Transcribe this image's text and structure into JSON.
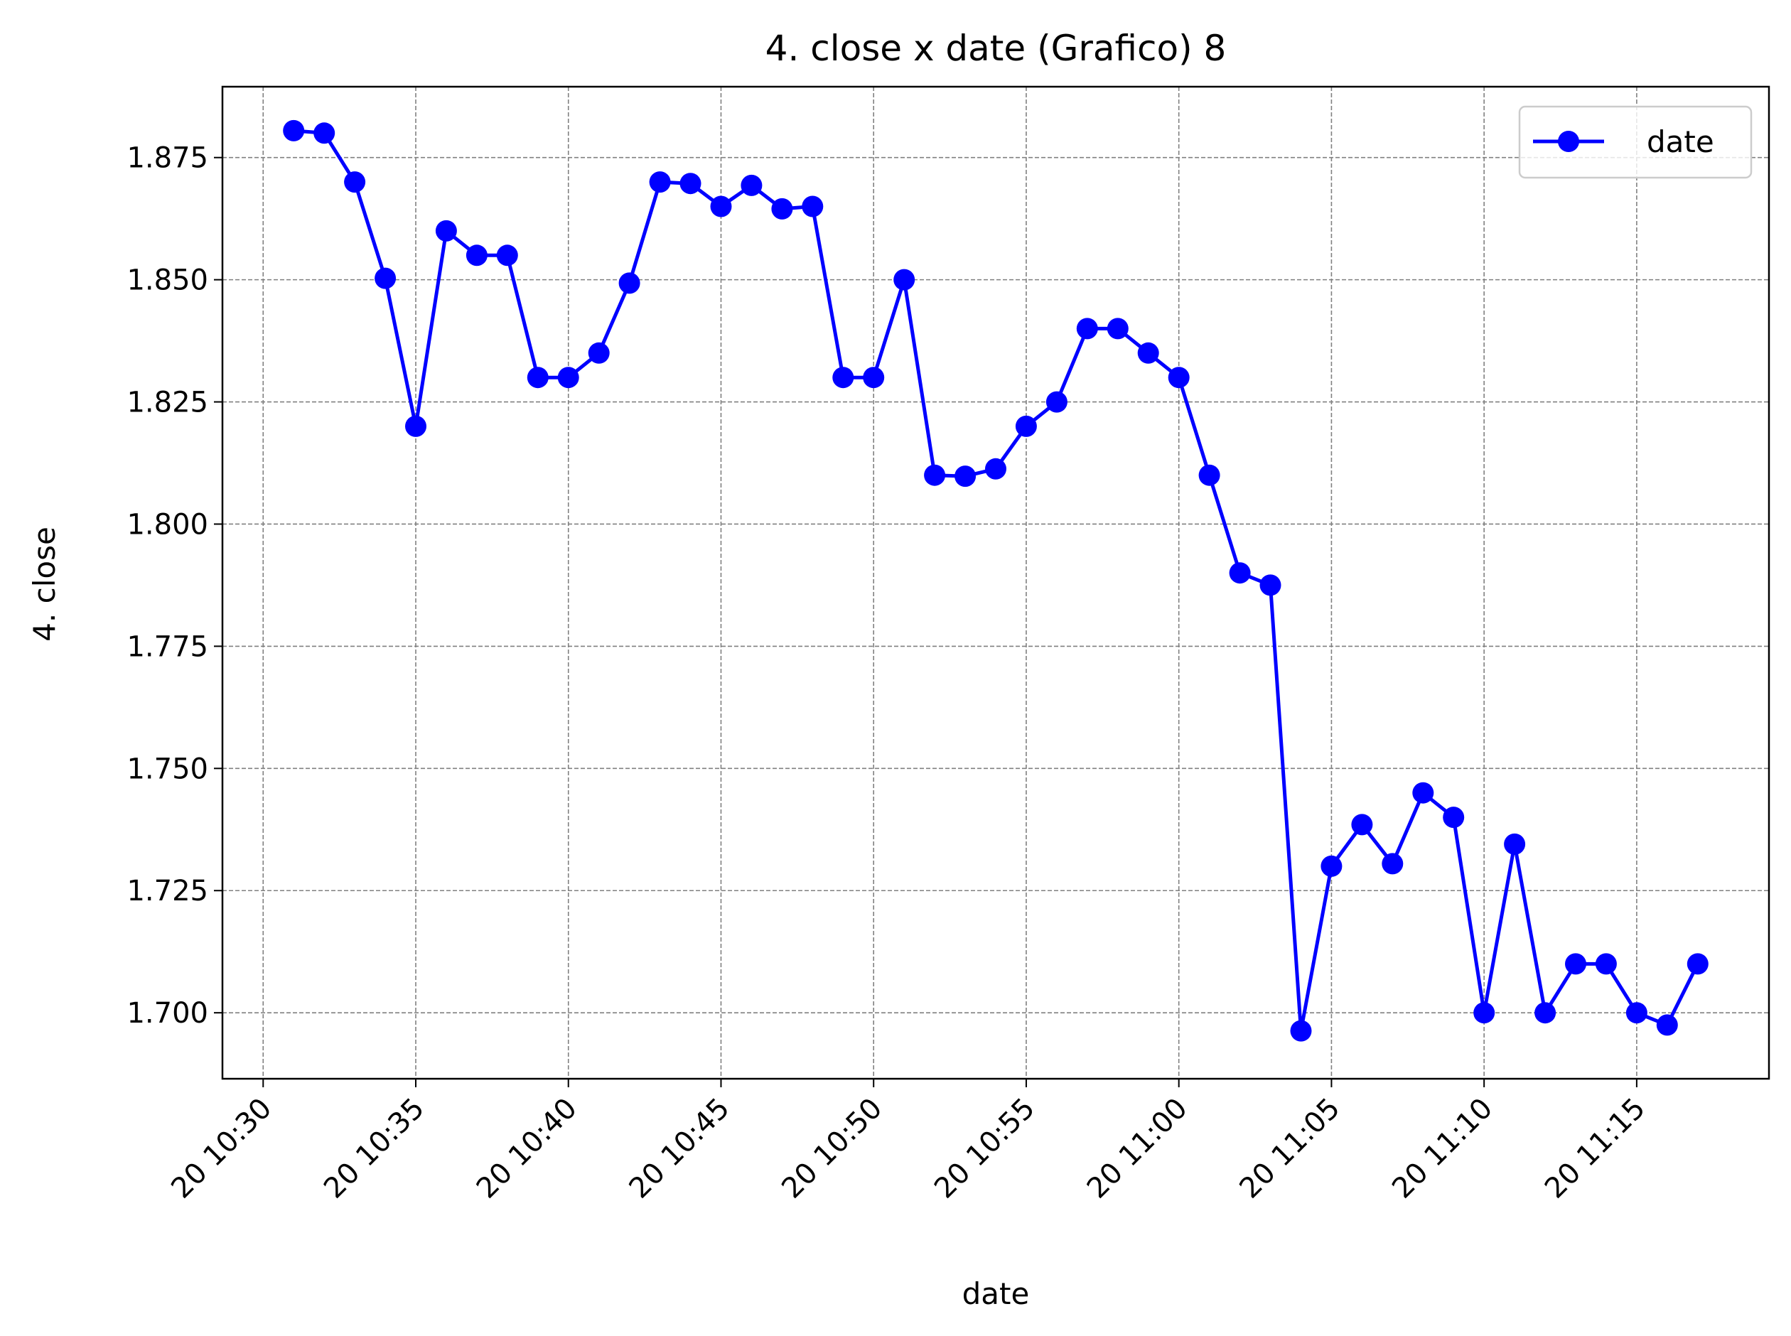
{
  "chart_data": {
    "type": "line",
    "title": "4. close x date (Grafico) 8",
    "xlabel": "date",
    "ylabel": "4. close",
    "grid": true,
    "legend_position": "top-right",
    "series_color": "#0000ff",
    "x_tick_labels": [
      "20 10:30",
      "20 10:35",
      "20 10:40",
      "20 10:45",
      "20 10:50",
      "20 10:55",
      "20 11:00",
      "20 11:05",
      "20 11:10",
      "20 11:15"
    ],
    "y_tick_labels": [
      "1.700",
      "1.725",
      "1.750",
      "1.775",
      "1.800",
      "1.825",
      "1.850",
      "1.875"
    ],
    "xlim": [
      "20 10:28:40",
      "20 11:19:20"
    ],
    "ylim": [
      1.6865,
      1.8895
    ],
    "x": [
      "20 10:31",
      "20 10:32",
      "20 10:33",
      "20 10:34",
      "20 10:35",
      "20 10:36",
      "20 10:37",
      "20 10:38",
      "20 10:39",
      "20 10:40",
      "20 10:41",
      "20 10:42",
      "20 10:43",
      "20 10:44",
      "20 10:45",
      "20 10:46",
      "20 10:47",
      "20 10:48",
      "20 10:49",
      "20 10:50",
      "20 10:51",
      "20 10:52",
      "20 10:53",
      "20 10:54",
      "20 10:55",
      "20 10:56",
      "20 10:57",
      "20 10:58",
      "20 10:59",
      "20 11:00",
      "20 11:01",
      "20 11:02",
      "20 11:03",
      "20 11:04",
      "20 11:05",
      "20 11:06",
      "20 11:07",
      "20 11:08",
      "20 11:09",
      "20 11:10",
      "20 11:11",
      "20 11:12",
      "20 11:13",
      "20 11:14",
      "20 11:15",
      "20 11:16",
      "20 11:17"
    ],
    "series": [
      {
        "name": "date",
        "values": [
          1.8805,
          1.88,
          1.87,
          1.8503,
          1.82,
          1.86,
          1.855,
          1.855,
          1.83,
          1.83,
          1.835,
          1.8493,
          1.87,
          1.8697,
          1.865,
          1.8693,
          1.8645,
          1.865,
          1.83,
          1.83,
          1.85,
          1.81,
          1.8098,
          1.8113,
          1.82,
          1.825,
          1.84,
          1.84,
          1.835,
          1.83,
          1.81,
          1.79,
          1.7875,
          1.6963,
          1.73,
          1.7385,
          1.7305,
          1.745,
          1.74,
          1.7,
          1.7345,
          1.7,
          1.71,
          1.71,
          1.7,
          1.6975,
          1.71
        ]
      }
    ]
  }
}
